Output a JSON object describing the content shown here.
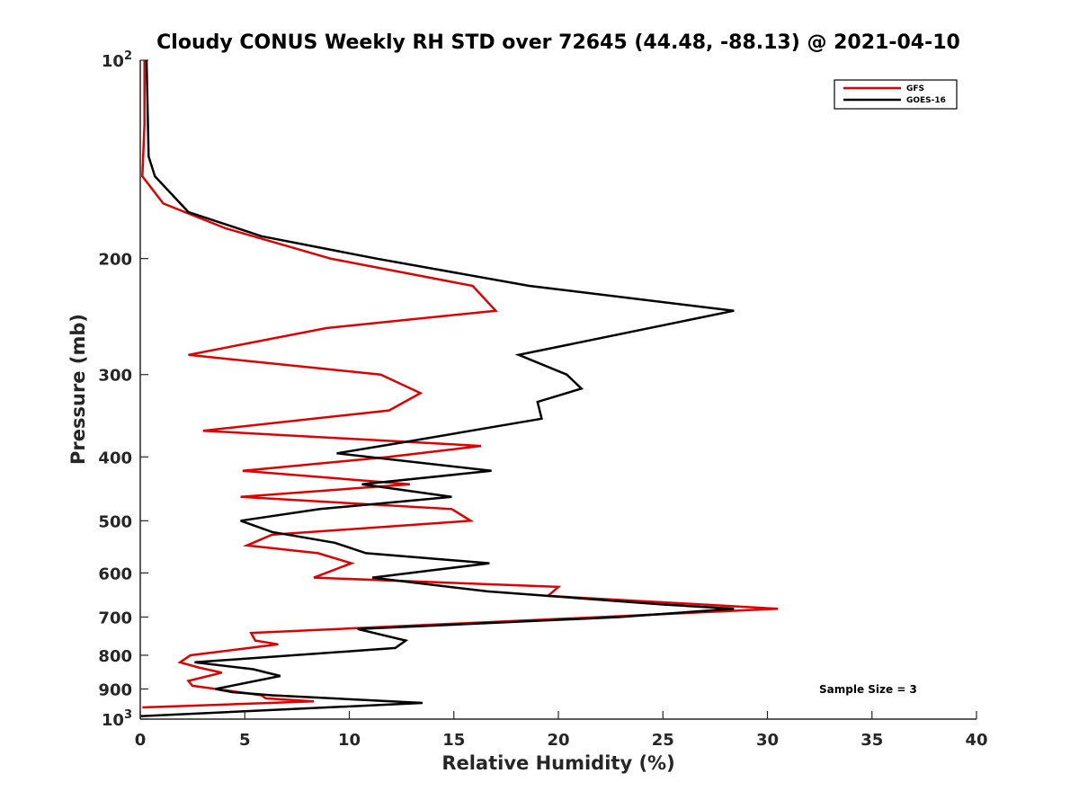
{
  "chart_data": {
    "type": "line",
    "title": "Cloudy CONUS Weekly RH STD over 72645 (44.48, -88.13) @ 2021-04-10",
    "xlabel": "Relative Humidity (%)",
    "ylabel": "Pressure (mb)",
    "xlim": [
      0,
      40
    ],
    "ylim": [
      100,
      1000
    ],
    "yscale": "log",
    "yreversed": true,
    "grid": false,
    "legend_position": "top-right",
    "xticks": [
      0,
      5,
      10,
      15,
      20,
      25,
      30,
      35,
      40
    ],
    "xtick_labels": [
      "0",
      "5",
      "10",
      "15",
      "20",
      "25",
      "30",
      "35",
      "40"
    ],
    "yticks": [
      100,
      200,
      300,
      400,
      500,
      600,
      700,
      800,
      900,
      1000
    ],
    "ytick_labels": [
      {
        "base": "10",
        "exp": "2"
      },
      {
        "base": "200",
        "exp": ""
      },
      {
        "base": "300",
        "exp": ""
      },
      {
        "base": "400",
        "exp": ""
      },
      {
        "base": "500",
        "exp": ""
      },
      {
        "base": "600",
        "exp": ""
      },
      {
        "base": "700",
        "exp": ""
      },
      {
        "base": "800",
        "exp": ""
      },
      {
        "base": "900",
        "exp": ""
      },
      {
        "base": "10",
        "exp": "3"
      }
    ],
    "annotation": "Sample Size = 3",
    "series": [
      {
        "name": "GFS",
        "color": "#e00000",
        "points": [
          [
            0.2,
            100
          ],
          [
            0.2,
            125
          ],
          [
            0.1,
            150
          ],
          [
            1.1,
            165
          ],
          [
            4.1,
            180
          ],
          [
            9.1,
            200
          ],
          [
            15.9,
            220
          ],
          [
            17.0,
            240
          ],
          [
            8.9,
            255
          ],
          [
            2.3,
            280
          ],
          [
            11.5,
            300
          ],
          [
            13.4,
            320
          ],
          [
            11.9,
            340
          ],
          [
            3.0,
            365
          ],
          [
            16.3,
            385
          ],
          [
            11.9,
            400
          ],
          [
            4.9,
            420
          ],
          [
            12.9,
            440
          ],
          [
            4.8,
            460
          ],
          [
            14.9,
            480
          ],
          [
            15.8,
            500
          ],
          [
            6.3,
            525
          ],
          [
            5.1,
            545
          ],
          [
            8.5,
            560
          ],
          [
            10.1,
            580
          ],
          [
            8.3,
            610
          ],
          [
            20.0,
            630
          ],
          [
            19.5,
            650
          ],
          [
            30.5,
            680
          ],
          [
            22.0,
            700
          ],
          [
            5.3,
            740
          ],
          [
            5.5,
            760
          ],
          [
            6.6,
            770
          ],
          [
            2.4,
            800
          ],
          [
            1.9,
            820
          ],
          [
            2.8,
            835
          ],
          [
            3.9,
            850
          ],
          [
            2.3,
            875
          ],
          [
            2.5,
            890
          ],
          [
            5.8,
            920
          ],
          [
            6.0,
            930
          ],
          [
            8.3,
            940
          ],
          [
            0.1,
            960
          ]
        ]
      },
      {
        "name": "GOES-16",
        "color": "#000000",
        "points": [
          [
            0.3,
            100
          ],
          [
            0.4,
            140
          ],
          [
            0.7,
            150
          ],
          [
            2.3,
            170
          ],
          [
            5.8,
            185
          ],
          [
            11.3,
            200
          ],
          [
            18.6,
            220
          ],
          [
            28.4,
            240
          ],
          [
            18.1,
            280
          ],
          [
            20.4,
            300
          ],
          [
            21.1,
            315
          ],
          [
            19.0,
            330
          ],
          [
            19.2,
            350
          ],
          [
            12.6,
            380
          ],
          [
            9.4,
            395
          ],
          [
            16.8,
            420
          ],
          [
            10.6,
            440
          ],
          [
            14.9,
            460
          ],
          [
            8.6,
            480
          ],
          [
            4.8,
            500
          ],
          [
            6.3,
            520
          ],
          [
            9.3,
            540
          ],
          [
            10.8,
            560
          ],
          [
            16.7,
            580
          ],
          [
            11.1,
            610
          ],
          [
            16.6,
            640
          ],
          [
            25.0,
            670
          ],
          [
            28.4,
            680
          ],
          [
            22.9,
            700
          ],
          [
            10.4,
            730
          ],
          [
            12.7,
            760
          ],
          [
            12.2,
            780
          ],
          [
            2.6,
            820
          ],
          [
            5.4,
            840
          ],
          [
            6.7,
            860
          ],
          [
            3.6,
            900
          ],
          [
            4.4,
            910
          ],
          [
            6.3,
            920
          ],
          [
            13.5,
            945
          ],
          [
            0.0,
            990
          ]
        ]
      }
    ]
  }
}
